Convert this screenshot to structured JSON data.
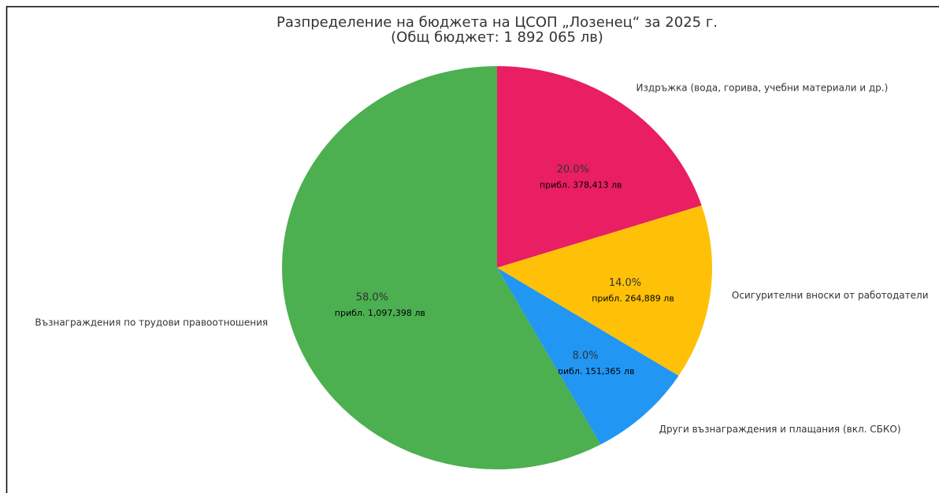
{
  "chart_data": {
    "type": "pie",
    "title": "Разпределение на бюджета на ЦСОП „Лозенец“ за 2025 г.",
    "subtitle": "(Общ бюджет: 1 892 065 лв)",
    "categories": [
      "Издръжка (вода, горива, учебни материали и др.)",
      "Осигурителни вноски от работодатели",
      "Други възнаграждения и плащания (вкл. СБКО)",
      "Възнаграждения по трудови правоотношения"
    ],
    "values": [
      20,
      14,
      8,
      58
    ],
    "value_labels": [
      "20.0%",
      "14.0%",
      "8.0%",
      "58.0%"
    ],
    "amount_labels": [
      "прибл. 378,413 лв",
      "прибл. 264,889 лв",
      "прибл. 151,365 лв",
      "прибл. 1,097,398 лв"
    ],
    "colors": [
      "#e91e63",
      "#ffc107",
      "#2196f3",
      "#4caf50"
    ]
  }
}
